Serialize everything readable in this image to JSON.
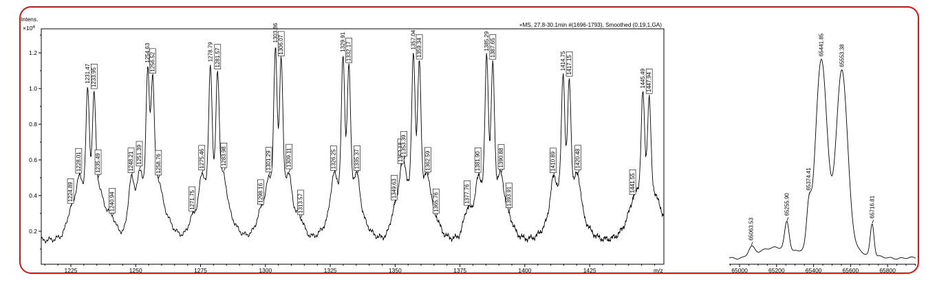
{
  "figure": {
    "border_color": "#dd1414",
    "background": "#ffffff",
    "curve_color": "#000000",
    "text_color": "#000000"
  },
  "chart_data": [
    {
      "id": "ms-raw-spectrum",
      "type": "line",
      "title": "+MS, 27.8-30.1min #(1696-1793), Smoothed (0.19,1,GA)",
      "ylabel": "Intens.",
      "y_scale_prefix": "×10",
      "y_scale_exponent": "4",
      "xlabel": "m/z",
      "xlim": [
        1213.6,
        1453.6
      ],
      "ylim": [
        0.015,
        1.335
      ],
      "xticks": [
        1225,
        1250,
        1275,
        1300,
        1325,
        1350,
        1375,
        1400,
        1425
      ],
      "yticks": [
        0.2,
        0.4,
        0.6,
        0.8,
        1.0,
        1.2
      ],
      "x_minor_step": 5,
      "y_minor_step": 0.1,
      "grid": false,
      "baseline": 0.15,
      "cluster_centers": [
        1232.7,
        1255.6,
        1280.2,
        1305.0,
        1331.0,
        1358.2,
        1386.5,
        1415.9,
        1446.7
      ],
      "peaks": [
        {
          "mz": 1224.89,
          "intensity": 0.33,
          "label": "1224.89",
          "size": "small",
          "boxed": true
        },
        {
          "mz": 1228.01,
          "intensity": 0.5,
          "label": "1228.01",
          "size": "mid",
          "boxed": true
        },
        {
          "mz": 1231.47,
          "intensity": 1.0,
          "label": "1231.47",
          "size": "tall",
          "boxed": false
        },
        {
          "mz": 1233.95,
          "intensity": 0.96,
          "label": "1233.95",
          "size": "tall",
          "boxed": true
        },
        {
          "mz": 1235.49,
          "intensity": 0.5,
          "label": "1235.49",
          "size": "mid",
          "boxed": true
        },
        {
          "mz": 1240.94,
          "intensity": 0.29,
          "label": "1240.94",
          "size": "small",
          "boxed": true
        },
        {
          "mz": 1248.21,
          "intensity": 0.5,
          "label": "1248.21",
          "size": "mid",
          "boxed": true
        },
        {
          "mz": 1251.39,
          "intensity": 0.53,
          "label": "1251.39",
          "size": "mid",
          "boxed": true
        },
        {
          "mz": 1254.63,
          "intensity": 1.11,
          "label": "1254.63",
          "size": "tall",
          "boxed": false
        },
        {
          "mz": 1256.52,
          "intensity": 1.07,
          "label": "1256.52",
          "size": "tall",
          "boxed": true
        },
        {
          "mz": 1258.76,
          "intensity": 0.5,
          "label": "1258.76",
          "size": "mid",
          "boxed": true
        },
        {
          "mz": 1271.75,
          "intensity": 0.29,
          "label": "1271.75",
          "size": "small",
          "boxed": true
        },
        {
          "mz": 1275.46,
          "intensity": 0.52,
          "label": "1275.46",
          "size": "mid",
          "boxed": true
        },
        {
          "mz": 1278.79,
          "intensity": 1.14,
          "label": "1278.79",
          "size": "tall",
          "boxed": false
        },
        {
          "mz": 1281.57,
          "intensity": 1.1,
          "label": "1281.57",
          "size": "tall",
          "boxed": true
        },
        {
          "mz": 1283.98,
          "intensity": 0.52,
          "label": "1283.98",
          "size": "mid",
          "boxed": true
        },
        {
          "mz": 1298.16,
          "intensity": 0.33,
          "label": "1298.16",
          "size": "small",
          "boxed": true
        },
        {
          "mz": 1301.29,
          "intensity": 0.5,
          "label": "1301.29",
          "size": "mid",
          "boxed": true
        },
        {
          "mz": 1303.86,
          "intensity": 1.22,
          "label": "1303.86",
          "size": "tall",
          "boxed": false
        },
        {
          "mz": 1306.07,
          "intensity": 1.17,
          "label": "1306.07",
          "size": "tall",
          "boxed": true
        },
        {
          "mz": 1309.11,
          "intensity": 0.52,
          "label": "1309.11",
          "size": "mid",
          "boxed": true
        },
        {
          "mz": 1313.57,
          "intensity": 0.28,
          "label": "1313.57",
          "size": "small",
          "boxed": true
        },
        {
          "mz": 1326.25,
          "intensity": 0.52,
          "label": "1326.25",
          "size": "mid",
          "boxed": true
        },
        {
          "mz": 1329.91,
          "intensity": 1.18,
          "label": "1329.91",
          "size": "tall",
          "boxed": false
        },
        {
          "mz": 1332.17,
          "intensity": 1.13,
          "label": "1332.17",
          "size": "tall",
          "boxed": true
        },
        {
          "mz": 1335.37,
          "intensity": 0.52,
          "label": "1335.37",
          "size": "mid",
          "boxed": true
        },
        {
          "mz": 1349.63,
          "intensity": 0.33,
          "label": "1349.63",
          "size": "small",
          "boxed": true
        },
        {
          "mz": 1352.18,
          "intensity": 0.46,
          "label": "1352.18",
          "size": "mid",
          "boxed": true
        },
        {
          "mz": 1353.39,
          "intensity": 0.52,
          "label": "1353.39",
          "size": "mid",
          "boxed": true
        },
        {
          "mz": 1357.04,
          "intensity": 1.21,
          "label": "1357.04",
          "size": "tall",
          "boxed": false
        },
        {
          "mz": 1359.34,
          "intensity": 1.16,
          "label": "1359.34",
          "size": "tall",
          "boxed": true
        },
        {
          "mz": 1362.59,
          "intensity": 0.52,
          "label": "1362.59",
          "size": "mid",
          "boxed": true
        },
        {
          "mz": 1365.76,
          "intensity": 0.28,
          "label": "1365.76",
          "size": "small",
          "boxed": true
        },
        {
          "mz": 1377.76,
          "intensity": 0.33,
          "label": "1377.76",
          "size": "small",
          "boxed": true
        },
        {
          "mz": 1381.9,
          "intensity": 0.5,
          "label": "1381.90",
          "size": "mid",
          "boxed": true
        },
        {
          "mz": 1385.29,
          "intensity": 1.19,
          "label": "1385.29",
          "size": "tall",
          "boxed": false
        },
        {
          "mz": 1387.65,
          "intensity": 1.14,
          "label": "1387.65",
          "size": "tall",
          "boxed": true
        },
        {
          "mz": 1390.88,
          "intensity": 0.52,
          "label": "1390.88",
          "size": "mid",
          "boxed": true
        },
        {
          "mz": 1393.91,
          "intensity": 0.3,
          "label": "1393.91",
          "size": "small",
          "boxed": true
        },
        {
          "mz": 1410.89,
          "intensity": 0.5,
          "label": "1410.89",
          "size": "mid",
          "boxed": true
        },
        {
          "mz": 1414.75,
          "intensity": 1.09,
          "label": "1414.75",
          "size": "tall",
          "boxed": false
        },
        {
          "mz": 1417.15,
          "intensity": 1.05,
          "label": "1417.15",
          "size": "tall",
          "boxed": true
        },
        {
          "mz": 1420.48,
          "intensity": 0.52,
          "label": "1420.48",
          "size": "mid",
          "boxed": true
        },
        {
          "mz": 1441.55,
          "intensity": 0.33,
          "label": "1441.55",
          "size": "small",
          "boxed": true
        },
        {
          "mz": 1445.49,
          "intensity": 0.98,
          "label": "1445.49",
          "size": "tall",
          "boxed": false
        },
        {
          "mz": 1447.94,
          "intensity": 0.95,
          "label": "1447.94",
          "size": "tall",
          "boxed": true
        }
      ]
    },
    {
      "id": "deconvoluted-mass-spectrum",
      "type": "line",
      "title": "",
      "xlabel": "",
      "xlim": [
        64944,
        65952
      ],
      "ylim": [
        0,
        1.35
      ],
      "xticks": [
        65000,
        65200,
        65400,
        65600,
        65800
      ],
      "yticks": [],
      "x_minor_step": 50,
      "grid": false,
      "baseline": 0.035,
      "peaks": [
        {
          "mz": 65063.53,
          "intensity": 0.1,
          "label": "65063.53",
          "size": "small",
          "boxed": false
        },
        {
          "mz": 65255.9,
          "intensity": 0.24,
          "label": "65255.90",
          "size": "small",
          "boxed": false
        },
        {
          "mz": 65374.41,
          "intensity": 0.39,
          "label": "65374.41",
          "size": "small",
          "boxed": false
        },
        {
          "mz": 65441.85,
          "intensity": 1.17,
          "label": "65441.85",
          "size": "tall",
          "boxed": false
        },
        {
          "mz": 65553.38,
          "intensity": 1.11,
          "label": "65553.38",
          "size": "tall",
          "boxed": false
        },
        {
          "mz": 65716.81,
          "intensity": 0.23,
          "label": "65716.81",
          "size": "small",
          "boxed": false
        }
      ]
    }
  ]
}
